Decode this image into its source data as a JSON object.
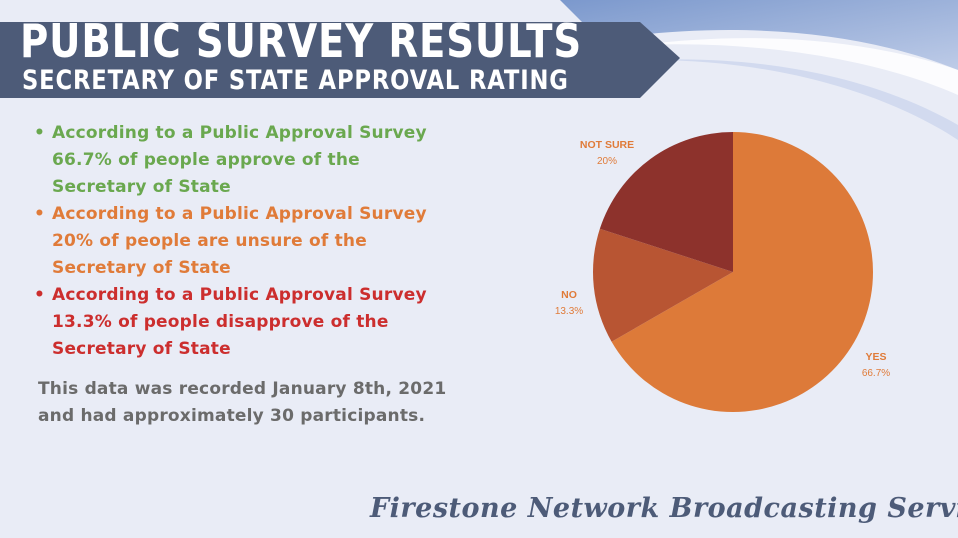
{
  "header": {
    "title": "PUBLIC SURVEY RESULTS",
    "subtitle": "SECRETARY OF STATE APPROVAL RATING"
  },
  "bullets": [
    {
      "lines": [
        "According to a Public Approval Survey",
        "66.7% of people approve of the",
        "Secretary of State"
      ],
      "color": "#6aa84f"
    },
    {
      "lines": [
        "According to a Public Approval Survey",
        "20% of people are unsure of the",
        "Secretary of State"
      ],
      "color": "#e07b39"
    },
    {
      "lines": [
        "According to a Public Approval Survey",
        "13.3% of people disapprove of the",
        "Secretary of State"
      ],
      "color": "#cc2e2e"
    }
  ],
  "note": {
    "line1": "This data was recorded January 8th, 2021",
    "line2": "and had approximately 30 participants."
  },
  "chart_data": {
    "type": "pie",
    "slices": [
      {
        "label": "YES",
        "value": 66.7,
        "value_label": "66.7%",
        "color": "#dd7a39",
        "label_color": "#e07b39"
      },
      {
        "label": "NO",
        "value": 13.3,
        "value_label": "13.3%",
        "color": "#b85533",
        "label_color": "#e07b39"
      },
      {
        "label": "NOT SURE",
        "value": 20,
        "value_label": "20%",
        "color": "#8d322c",
        "label_color": "#e07b39"
      }
    ],
    "start_angle": "12 o'clock",
    "direction": "clockwise"
  },
  "footer": {
    "text": "Firestone Network Broadcasting Service"
  },
  "colors": {
    "banner": "#4d5b78",
    "background": "#e9ecf6",
    "swoosh": "#8ea4cf",
    "note_text": "#6b6b6b"
  }
}
